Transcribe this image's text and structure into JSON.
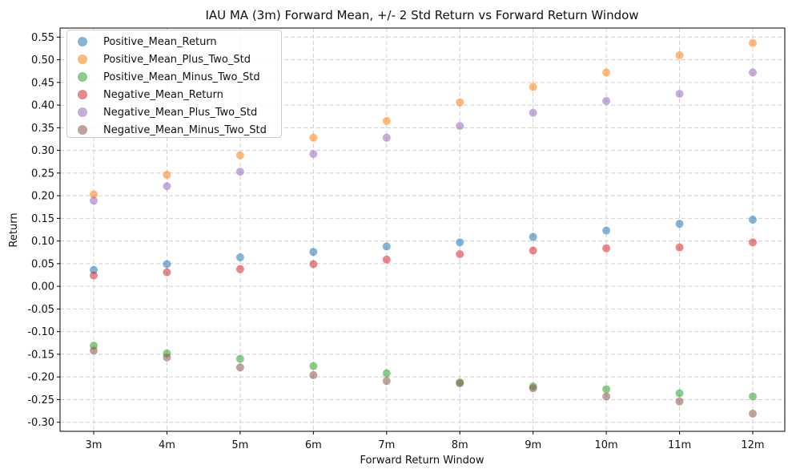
{
  "chart_data": {
    "type": "scatter",
    "title": "IAU MA (3m) Forward Mean, +/- 2 Std Return vs Forward Return Window",
    "xlabel": "Forward Return Window",
    "ylabel": "Return",
    "categories": [
      "3m",
      "4m",
      "5m",
      "6m",
      "7m",
      "8m",
      "9m",
      "10m",
      "11m",
      "12m"
    ],
    "ylim": [
      -0.32,
      0.57
    ],
    "yticks": [
      -0.3,
      -0.25,
      -0.2,
      -0.15,
      -0.1,
      -0.05,
      0.0,
      0.05,
      0.1,
      0.15,
      0.2,
      0.25,
      0.3,
      0.35,
      0.4,
      0.45,
      0.5,
      0.55
    ],
    "ytick_labels": [
      "-0.30",
      "-0.25",
      "-0.20",
      "-0.15",
      "-0.10",
      "-0.05",
      "0.00",
      "0.05",
      "0.10",
      "0.15",
      "0.20",
      "0.25",
      "0.30",
      "0.35",
      "0.40",
      "0.45",
      "0.50",
      "0.55"
    ],
    "grid": true,
    "legend_position": "top-left",
    "series": [
      {
        "name": "Positive_Mean_Return",
        "color": "#1f77b4",
        "values": [
          0.036,
          0.049,
          0.064,
          0.076,
          0.088,
          0.097,
          0.109,
          0.123,
          0.138,
          0.147
        ]
      },
      {
        "name": "Positive_Mean_Plus_Two_Std",
        "color": "#ff7f0e",
        "values": [
          0.203,
          0.246,
          0.289,
          0.328,
          0.365,
          0.406,
          0.44,
          0.472,
          0.51,
          0.537
        ]
      },
      {
        "name": "Positive_Mean_Minus_Two_Std",
        "color": "#2ca02c",
        "values": [
          -0.131,
          -0.148,
          -0.16,
          -0.176,
          -0.192,
          -0.212,
          -0.221,
          -0.227,
          -0.236,
          -0.243
        ]
      },
      {
        "name": "Negative_Mean_Return",
        "color": "#d62728",
        "values": [
          0.024,
          0.031,
          0.038,
          0.049,
          0.059,
          0.071,
          0.079,
          0.084,
          0.086,
          0.097
        ]
      },
      {
        "name": "Negative_Mean_Plus_Two_Std",
        "color": "#9467bd",
        "values": [
          0.189,
          0.221,
          0.253,
          0.292,
          0.328,
          0.354,
          0.383,
          0.409,
          0.425,
          0.472
        ]
      },
      {
        "name": "Negative_Mean_Minus_Two_Std",
        "color": "#8c564b",
        "values": [
          -0.142,
          -0.157,
          -0.179,
          -0.196,
          -0.209,
          -0.214,
          -0.225,
          -0.243,
          -0.254,
          -0.281
        ]
      }
    ]
  }
}
